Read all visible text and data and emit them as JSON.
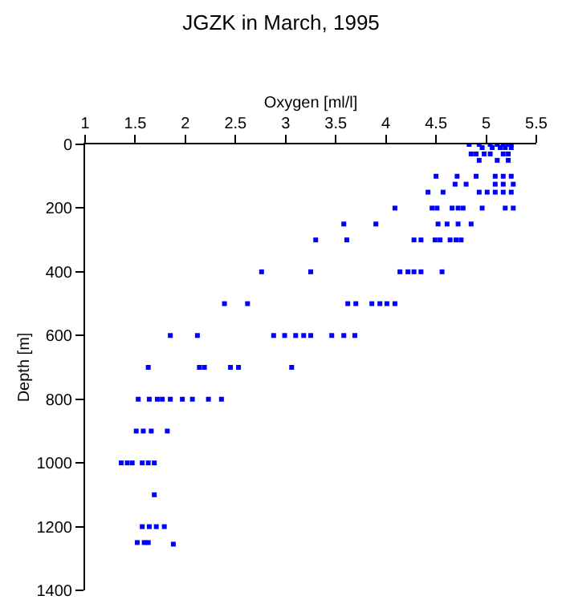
{
  "chart_data": {
    "type": "scatter",
    "title": "JGZK in March, 1995",
    "xlabel": "Oxygen [ml/l]",
    "ylabel": "Depth [m]",
    "x": [
      4.83,
      4.93,
      5.04,
      5.11,
      5.17,
      5.22,
      5.25,
      4.96,
      5.06,
      5.14,
      5.19,
      5.25,
      4.85,
      4.9,
      4.98,
      5.04,
      5.17,
      5.22,
      4.93,
      5.11,
      5.22,
      4.5,
      4.71,
      4.9,
      5.09,
      5.17,
      5.25,
      4.69,
      4.8,
      5.09,
      5.17,
      5.27,
      4.42,
      4.57,
      4.93,
      5.01,
      5.09,
      5.17,
      5.25,
      4.09,
      4.46,
      4.51,
      4.66,
      4.72,
      4.77,
      4.96,
      5.19,
      5.27,
      3.58,
      3.9,
      4.52,
      4.61,
      4.72,
      4.85,
      3.3,
      3.61,
      4.28,
      4.35,
      4.49,
      4.54,
      4.64,
      4.7,
      4.75,
      2.76,
      3.25,
      4.14,
      4.22,
      4.28,
      4.35,
      4.56,
      2.39,
      2.62,
      3.62,
      3.7,
      3.86,
      3.94,
      4.01,
      4.09,
      1.85,
      2.12,
      2.88,
      2.99,
      3.1,
      3.18,
      3.25,
      3.46,
      3.58,
      3.69,
      1.63,
      2.14,
      2.19,
      2.45,
      2.53,
      3.06,
      1.53,
      1.64,
      1.72,
      1.77,
      1.85,
      1.97,
      2.07,
      2.23,
      2.36,
      1.51,
      1.58,
      1.66,
      1.82,
      1.36,
      1.42,
      1.47,
      1.57,
      1.63,
      1.69,
      1.69,
      1.57,
      1.64,
      1.71,
      1.79,
      1.52,
      1.59,
      1.63,
      1.88
    ],
    "values": [
      0,
      0,
      0,
      0,
      0,
      0,
      0,
      10,
      10,
      10,
      10,
      10,
      30,
      30,
      30,
      30,
      30,
      30,
      50,
      50,
      50,
      100,
      100,
      100,
      100,
      100,
      100,
      125,
      125,
      125,
      125,
      125,
      150,
      150,
      150,
      150,
      150,
      150,
      150,
      200,
      200,
      200,
      200,
      200,
      200,
      200,
      200,
      200,
      250,
      250,
      250,
      250,
      250,
      250,
      300,
      300,
      300,
      300,
      300,
      300,
      300,
      300,
      300,
      400,
      400,
      400,
      400,
      400,
      400,
      400,
      500,
      500,
      500,
      500,
      500,
      500,
      500,
      500,
      600,
      600,
      600,
      600,
      600,
      600,
      600,
      600,
      600,
      600,
      700,
      700,
      700,
      700,
      700,
      700,
      800,
      800,
      800,
      800,
      800,
      800,
      800,
      800,
      800,
      900,
      900,
      900,
      900,
      1000,
      1000,
      1000,
      1000,
      1000,
      1000,
      1100,
      1200,
      1200,
      1200,
      1200,
      1250,
      1250,
      1250,
      1255
    ],
    "color": "#0000ff",
    "marker": "square",
    "xlim": [
      1,
      5.5
    ],
    "xticks": [
      1,
      1.5,
      2,
      2.5,
      3,
      3.5,
      4,
      4.5,
      5,
      5.5
    ],
    "ylim": [
      1400,
      0
    ],
    "yticks": [
      0,
      200,
      400,
      600,
      800,
      1000,
      1200,
      1400
    ],
    "legend": false
  }
}
